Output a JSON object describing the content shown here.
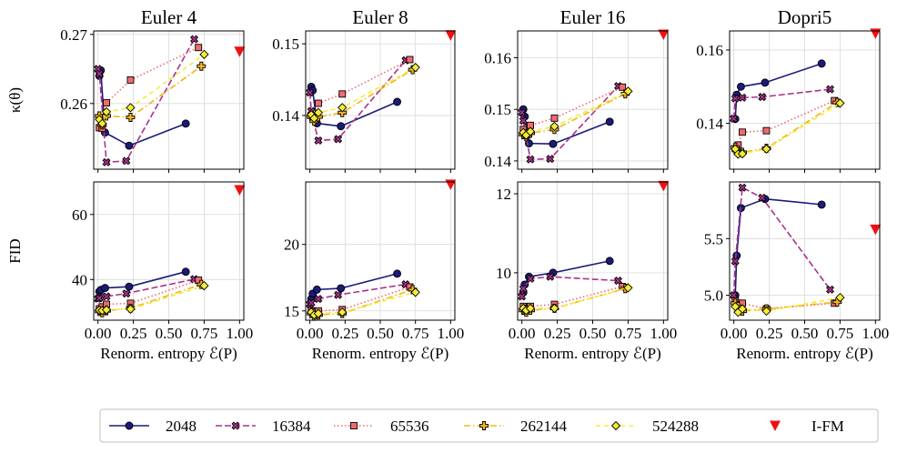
{
  "figure": {
    "legend": [
      {
        "key": "s2048",
        "label": "2048"
      },
      {
        "key": "s16384",
        "label": "16384"
      },
      {
        "key": "s65536",
        "label": "65536"
      },
      {
        "key": "s262144",
        "label": "262144"
      },
      {
        "key": "s524288",
        "label": "524288"
      },
      {
        "key": "ifm",
        "label": "I-FM"
      }
    ]
  },
  "chart_data": [
    {
      "type": "line",
      "id": "kappa-euler4",
      "title": "Euler 4",
      "xlabel": "",
      "ylabel": "κ(θ)",
      "xlim": [
        -0.03,
        1.03
      ],
      "ylim": [
        0.2505,
        0.2705
      ],
      "xticks": [],
      "yticks": [
        0.26,
        0.27
      ],
      "series": [
        {
          "name": "2048",
          "key": "s2048",
          "x": [
            0.01,
            0.02,
            0.05,
            0.22,
            0.62
          ],
          "y": [
            0.264,
            0.2648,
            0.2558,
            0.2539,
            0.2571
          ]
        },
        {
          "name": "16384",
          "key": "s16384",
          "x": [
            0.0,
            0.01,
            0.06,
            0.2,
            0.68
          ],
          "y": [
            0.265,
            0.2643,
            0.2515,
            0.2517,
            0.2693
          ]
        },
        {
          "name": "65536",
          "key": "s65536",
          "x": [
            0.01,
            0.03,
            0.06,
            0.23,
            0.71
          ],
          "y": [
            0.2565,
            0.2564,
            0.2601,
            0.2634,
            0.2681
          ]
        },
        {
          "name": "262144",
          "key": "s262144",
          "x": [
            0.01,
            0.03,
            0.06,
            0.23,
            0.73
          ],
          "y": [
            0.2582,
            0.2569,
            0.2582,
            0.258,
            0.2654
          ]
        },
        {
          "name": "524288",
          "key": "s524288",
          "x": [
            0.01,
            0.03,
            0.06,
            0.23,
            0.75
          ],
          "y": [
            0.2577,
            0.2571,
            0.2588,
            0.2594,
            0.2671
          ]
        }
      ],
      "ifm": {
        "x": 1.0,
        "y": 0.2675
      }
    },
    {
      "type": "line",
      "id": "kappa-euler8",
      "title": "Euler 8",
      "xlabel": "",
      "ylabel": "",
      "xlim": [
        -0.03,
        1.03
      ],
      "ylim": [
        0.1325,
        0.1518
      ],
      "xticks": [],
      "yticks": [
        0.14,
        0.15
      ],
      "series": [
        {
          "name": "2048",
          "key": "s2048",
          "x": [
            0.01,
            0.02,
            0.05,
            0.22,
            0.62
          ],
          "y": [
            0.144,
            0.1435,
            0.1389,
            0.1385,
            0.1419
          ]
        },
        {
          "name": "16384",
          "key": "s16384",
          "x": [
            0.0,
            0.01,
            0.06,
            0.2,
            0.68
          ],
          "y": [
            0.1432,
            0.1406,
            0.1365,
            0.1367,
            0.1477
          ]
        },
        {
          "name": "65536",
          "key": "s65536",
          "x": [
            0.01,
            0.03,
            0.06,
            0.23,
            0.71
          ],
          "y": [
            0.14,
            0.1397,
            0.1417,
            0.143,
            0.1478
          ]
        },
        {
          "name": "262144",
          "key": "s262144",
          "x": [
            0.01,
            0.03,
            0.06,
            0.23,
            0.73
          ],
          "y": [
            0.1398,
            0.1392,
            0.1398,
            0.1404,
            0.1464
          ]
        },
        {
          "name": "524288",
          "key": "s524288",
          "x": [
            0.01,
            0.03,
            0.06,
            0.23,
            0.75
          ],
          "y": [
            0.1401,
            0.1396,
            0.1404,
            0.1411,
            0.1467
          ]
        }
      ],
      "ifm": {
        "x": 1.0,
        "y": 0.1512
      }
    },
    {
      "type": "line",
      "id": "kappa-euler16",
      "title": "Euler 16",
      "xlabel": "",
      "ylabel": "",
      "xlim": [
        -0.03,
        1.03
      ],
      "ylim": [
        0.1384,
        0.1652
      ],
      "xticks": [],
      "yticks": [
        0.14,
        0.15,
        0.16
      ],
      "series": [
        {
          "name": "2048",
          "key": "s2048",
          "x": [
            0.01,
            0.02,
            0.05,
            0.22,
            0.62
          ],
          "y": [
            0.15,
            0.1486,
            0.1434,
            0.1433,
            0.1476
          ]
        },
        {
          "name": "16384",
          "key": "s16384",
          "x": [
            0.0,
            0.01,
            0.06,
            0.2,
            0.68
          ],
          "y": [
            0.1494,
            0.1478,
            0.1403,
            0.1404,
            0.1545
          ]
        },
        {
          "name": "65536",
          "key": "s65536",
          "x": [
            0.01,
            0.03,
            0.06,
            0.23,
            0.71
          ],
          "y": [
            0.1461,
            0.1454,
            0.1469,
            0.1483,
            0.1543
          ]
        },
        {
          "name": "262144",
          "key": "s262144",
          "x": [
            0.01,
            0.03,
            0.06,
            0.23,
            0.73
          ],
          "y": [
            0.1451,
            0.1447,
            0.1454,
            0.1461,
            0.153
          ]
        },
        {
          "name": "524288",
          "key": "s524288",
          "x": [
            0.01,
            0.03,
            0.06,
            0.23,
            0.75
          ],
          "y": [
            0.1455,
            0.145,
            0.1457,
            0.1467,
            0.1535
          ]
        }
      ],
      "ifm": {
        "x": 1.0,
        "y": 0.1645
      }
    },
    {
      "type": "line",
      "id": "kappa-dopri5",
      "title": "Dopri5",
      "xlabel": "",
      "ylabel": "",
      "xlim": [
        -0.03,
        1.03
      ],
      "ylim": [
        0.1275,
        0.1652
      ],
      "xticks": [],
      "yticks": [
        0.14,
        0.16
      ],
      "series": [
        {
          "name": "2048",
          "key": "s2048",
          "x": [
            0.01,
            0.02,
            0.05,
            0.22,
            0.62
          ],
          "y": [
            0.1412,
            0.1478,
            0.15,
            0.1511,
            0.1563
          ]
        },
        {
          "name": "16384",
          "key": "s16384",
          "x": [
            0.0,
            0.01,
            0.06,
            0.2,
            0.68
          ],
          "y": [
            0.1413,
            0.1468,
            0.147,
            0.1472,
            0.1493
          ]
        },
        {
          "name": "65536",
          "key": "s65536",
          "x": [
            0.01,
            0.03,
            0.06,
            0.23,
            0.71
          ],
          "y": [
            0.1331,
            0.1341,
            0.1376,
            0.138,
            0.1462
          ]
        },
        {
          "name": "262144",
          "key": "s262144",
          "x": [
            0.01,
            0.03,
            0.06,
            0.23,
            0.73
          ],
          "y": [
            0.1335,
            0.1323,
            0.1321,
            0.1332,
            0.1457
          ]
        },
        {
          "name": "524288",
          "key": "s524288",
          "x": [
            0.01,
            0.03,
            0.06,
            0.23,
            0.75
          ],
          "y": [
            0.133,
            0.1316,
            0.1317,
            0.133,
            0.1455
          ]
        }
      ],
      "ifm": {
        "x": 1.0,
        "y": 0.1645
      }
    },
    {
      "type": "line",
      "id": "fid-euler4",
      "title": "",
      "xlabel": "Renorm. entropy ℰ(P)",
      "ylabel": "FID",
      "xlim": [
        -0.03,
        1.03
      ],
      "ylim": [
        27.5,
        70.0
      ],
      "xticks": [
        0.0,
        0.25,
        0.5,
        0.75,
        1.0
      ],
      "xtick_labels": [
        "0.00",
        "0.25",
        "0.50",
        "0.75",
        "1.00"
      ],
      "yticks": [
        40,
        60
      ],
      "series": [
        {
          "name": "2048",
          "key": "s2048",
          "x": [
            0.01,
            0.02,
            0.05,
            0.22,
            0.62
          ],
          "y": [
            36.3,
            36.8,
            37.4,
            37.8,
            42.4
          ]
        },
        {
          "name": "16384",
          "key": "s16384",
          "x": [
            0.0,
            0.01,
            0.06,
            0.2,
            0.68
          ],
          "y": [
            34.1,
            34.3,
            34.8,
            35.7,
            40.1
          ]
        },
        {
          "name": "65536",
          "key": "s65536",
          "x": [
            0.01,
            0.03,
            0.06,
            0.23,
            0.71
          ],
          "y": [
            31.0,
            31.6,
            32.4,
            32.7,
            39.8
          ]
        },
        {
          "name": "262144",
          "key": "s262144",
          "x": [
            0.01,
            0.03,
            0.06,
            0.23,
            0.73
          ],
          "y": [
            30.2,
            29.8,
            30.4,
            31.2,
            38.5
          ]
        },
        {
          "name": "524288",
          "key": "s524288",
          "x": [
            0.01,
            0.03,
            0.06,
            0.23,
            0.75
          ],
          "y": [
            30.6,
            30.5,
            30.7,
            30.9,
            38.1
          ]
        }
      ],
      "ifm": {
        "x": 1.0,
        "y": 67.5
      }
    },
    {
      "type": "line",
      "id": "fid-euler8",
      "title": "",
      "xlabel": "Renorm. entropy ℰ(P)",
      "ylabel": "",
      "xlim": [
        -0.03,
        1.03
      ],
      "ylim": [
        14.3,
        24.7
      ],
      "xticks": [
        0.0,
        0.25,
        0.5,
        0.75,
        1.0
      ],
      "xtick_labels": [
        "0.00",
        "0.25",
        "0.50",
        "0.75",
        "1.00"
      ],
      "yticks": [
        15,
        20
      ],
      "series": [
        {
          "name": "2048",
          "key": "s2048",
          "x": [
            0.01,
            0.02,
            0.05,
            0.22,
            0.62
          ],
          "y": [
            15.9,
            16.3,
            16.6,
            16.7,
            17.8
          ]
        },
        {
          "name": "16384",
          "key": "s16384",
          "x": [
            0.0,
            0.01,
            0.06,
            0.2,
            0.68
          ],
          "y": [
            15.5,
            15.6,
            15.9,
            16.2,
            17.0
          ]
        },
        {
          "name": "65536",
          "key": "s65536",
          "x": [
            0.01,
            0.03,
            0.06,
            0.23,
            0.71
          ],
          "y": [
            15.0,
            14.9,
            15.0,
            15.1,
            16.8
          ]
        },
        {
          "name": "262144",
          "key": "s262144",
          "x": [
            0.01,
            0.03,
            0.06,
            0.23,
            0.73
          ],
          "y": [
            14.8,
            14.6,
            14.7,
            14.8,
            16.6
          ]
        },
        {
          "name": "524288",
          "key": "s524288",
          "x": [
            0.01,
            0.03,
            0.06,
            0.23,
            0.75
          ],
          "y": [
            14.9,
            14.7,
            14.8,
            14.9,
            16.4
          ]
        }
      ],
      "ifm": {
        "x": 1.0,
        "y": 24.5
      }
    },
    {
      "type": "line",
      "id": "fid-euler16",
      "title": "",
      "xlabel": "Renorm. entropy ℰ(P)",
      "ylabel": "",
      "xlim": [
        -0.03,
        1.03
      ],
      "ylim": [
        8.8,
        12.3
      ],
      "xticks": [
        0.0,
        0.25,
        0.5,
        0.75,
        1.0
      ],
      "xtick_labels": [
        "0.00",
        "0.25",
        "0.50",
        "0.75",
        "1.00"
      ],
      "yticks": [
        10,
        12
      ],
      "series": [
        {
          "name": "2048",
          "key": "s2048",
          "x": [
            0.01,
            0.02,
            0.05,
            0.22,
            0.62
          ],
          "y": [
            9.5,
            9.7,
            9.9,
            10.0,
            10.3
          ]
        },
        {
          "name": "16384",
          "key": "s16384",
          "x": [
            0.0,
            0.01,
            0.06,
            0.2,
            0.68
          ],
          "y": [
            9.4,
            9.6,
            9.85,
            9.9,
            9.8
          ]
        },
        {
          "name": "65536",
          "key": "s65536",
          "x": [
            0.01,
            0.03,
            0.06,
            0.23,
            0.71
          ],
          "y": [
            9.15,
            9.1,
            9.15,
            9.2,
            9.65
          ]
        },
        {
          "name": "262144",
          "key": "s262144",
          "x": [
            0.01,
            0.03,
            0.06,
            0.23,
            0.73
          ],
          "y": [
            9.05,
            9.0,
            9.05,
            9.1,
            9.6
          ]
        },
        {
          "name": "524288",
          "key": "s524288",
          "x": [
            0.01,
            0.03,
            0.06,
            0.23,
            0.75
          ],
          "y": [
            9.1,
            9.05,
            9.1,
            9.1,
            9.62
          ]
        }
      ],
      "ifm": {
        "x": 1.0,
        "y": 12.2
      }
    },
    {
      "type": "line",
      "id": "fid-dopri5",
      "title": "",
      "xlabel": "Renorm. entropy ℰ(P)",
      "ylabel": "",
      "xlim": [
        -0.03,
        1.03
      ],
      "ylim": [
        4.78,
        6.0
      ],
      "xticks": [
        0.0,
        0.25,
        0.5,
        0.75,
        1.0
      ],
      "xtick_labels": [
        "0.00",
        "0.25",
        "0.50",
        "0.75",
        "1.00"
      ],
      "yticks": [
        5.0,
        5.5
      ],
      "ytick_labels": [
        "5.0",
        "5.5"
      ],
      "series": [
        {
          "name": "2048",
          "key": "s2048",
          "x": [
            0.01,
            0.02,
            0.05,
            0.22,
            0.62
          ],
          "y": [
            5.0,
            5.35,
            5.77,
            5.85,
            5.8
          ]
        },
        {
          "name": "16384",
          "key": "s16384",
          "x": [
            0.0,
            0.01,
            0.06,
            0.2,
            0.68
          ],
          "y": [
            5.0,
            5.3,
            5.95,
            5.86,
            5.05
          ]
        },
        {
          "name": "65536",
          "key": "s65536",
          "x": [
            0.01,
            0.03,
            0.06,
            0.23,
            0.71
          ],
          "y": [
            4.95,
            4.93,
            4.93,
            4.88,
            4.93
          ]
        },
        {
          "name": "262144",
          "key": "s262144",
          "x": [
            0.01,
            0.03,
            0.06,
            0.23,
            0.73
          ],
          "y": [
            4.93,
            4.9,
            4.86,
            4.88,
            4.94
          ]
        },
        {
          "name": "524288",
          "key": "s524288",
          "x": [
            0.01,
            0.03,
            0.06,
            0.23,
            0.75
          ],
          "y": [
            4.9,
            4.85,
            4.88,
            4.86,
            4.98
          ]
        }
      ],
      "ifm": {
        "x": 1.0,
        "y": 5.58
      }
    }
  ],
  "styles": {
    "s2048": {
      "color": "#1b1a7a",
      "dash": "",
      "marker": "circle",
      "fill": "#1b1a7a"
    },
    "s16384": {
      "color": "#a8328c",
      "dash": "7,3",
      "marker": "x",
      "fill": "#a8328c"
    },
    "s65536": {
      "color": "#f06a6f",
      "dash": "1.5,2.5",
      "marker": "square",
      "fill": "#f06a6f"
    },
    "s262144": {
      "color": "#f5b519",
      "dash": "7,3,1.5,3",
      "marker": "plus",
      "fill": "#f5b519"
    },
    "s524288": {
      "color": "#f3ed35",
      "dash": "5,4",
      "marker": "diamond",
      "fill": "#f3ed35"
    },
    "ifm": {
      "color": "#ee1111",
      "marker": "triangle-down",
      "fill": "#ee1111"
    }
  }
}
